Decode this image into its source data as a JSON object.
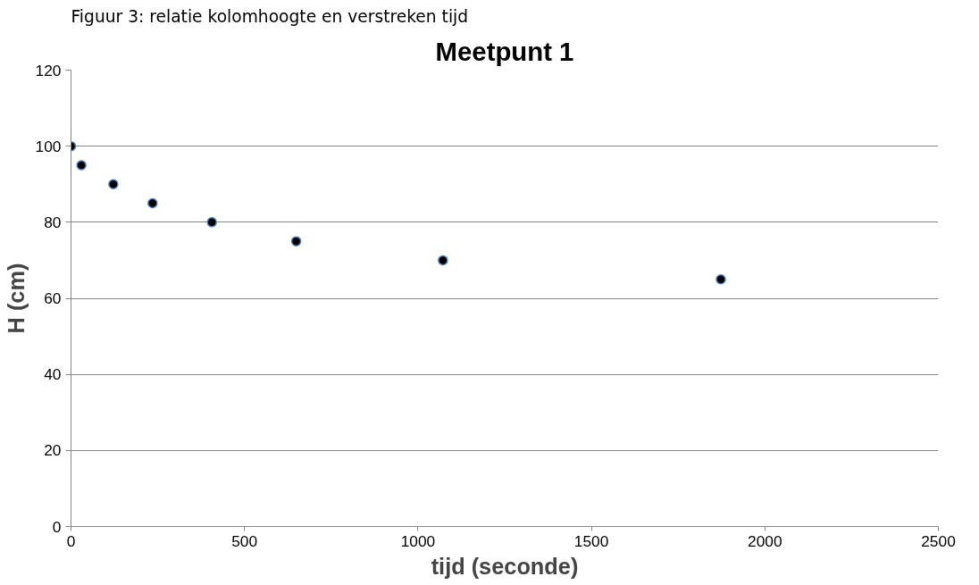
{
  "chart_data": {
    "type": "scatter",
    "title": "Meetpunt 1",
    "xlabel": "tijd (seconde)",
    "ylabel": "H (cm)",
    "annotations": [
      "Figuur 3: relatie kolomhoogte en verstreken tijd"
    ],
    "x": [
      0,
      30,
      122,
      235,
      406,
      649,
      1072,
      1873
    ],
    "series": [
      {
        "color": "#000000",
        "values": [
          100,
          95,
          90,
          85,
          80,
          75,
          70,
          65
        ]
      }
    ],
    "xlim": [
      0,
      2500
    ],
    "xticks": [
      0,
      500,
      1000,
      1500,
      2000,
      2500
    ],
    "ylim": [
      0,
      120
    ],
    "yticks": [
      0,
      20,
      40,
      60,
      80,
      100,
      120
    ],
    "grid": "y",
    "marker": "circle"
  }
}
